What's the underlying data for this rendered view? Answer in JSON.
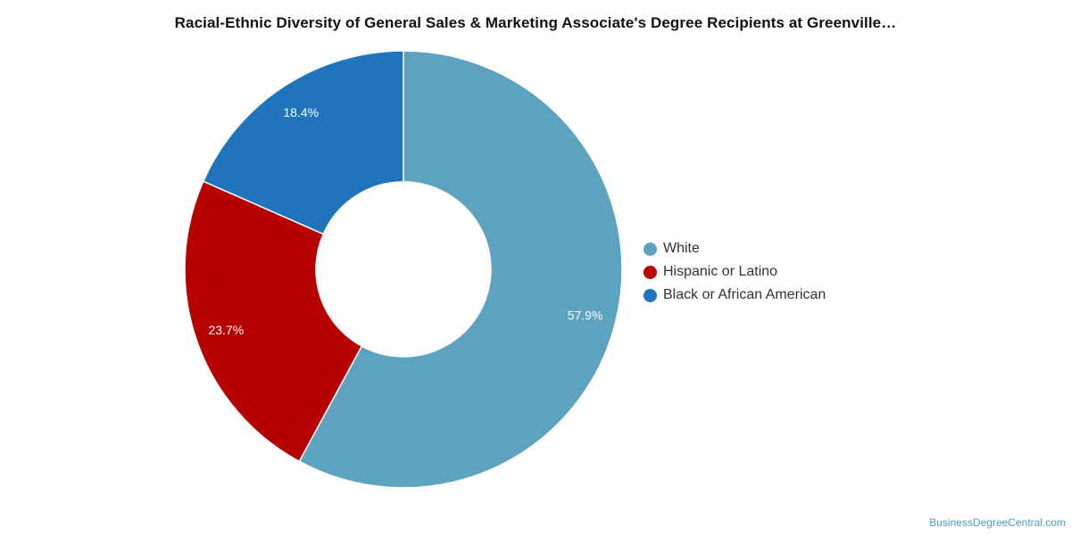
{
  "chart_data": {
    "type": "pie",
    "variant": "donut",
    "title": "Racial-Ethnic Diversity of General Sales & Marketing Associate's Degree Recipients at Greenville…",
    "slices": [
      {
        "label": "White",
        "value": 57.9,
        "display": "57.9%",
        "color": "#5da3bf"
      },
      {
        "label": "Hispanic or Latino",
        "value": 23.7,
        "display": "23.7%",
        "color": "#b70000"
      },
      {
        "label": "Black or African American",
        "value": 18.4,
        "display": "18.4%",
        "color": "#1f74bb"
      }
    ],
    "legend_position": "right"
  },
  "credit": "BusinessDegreeCentral.com"
}
